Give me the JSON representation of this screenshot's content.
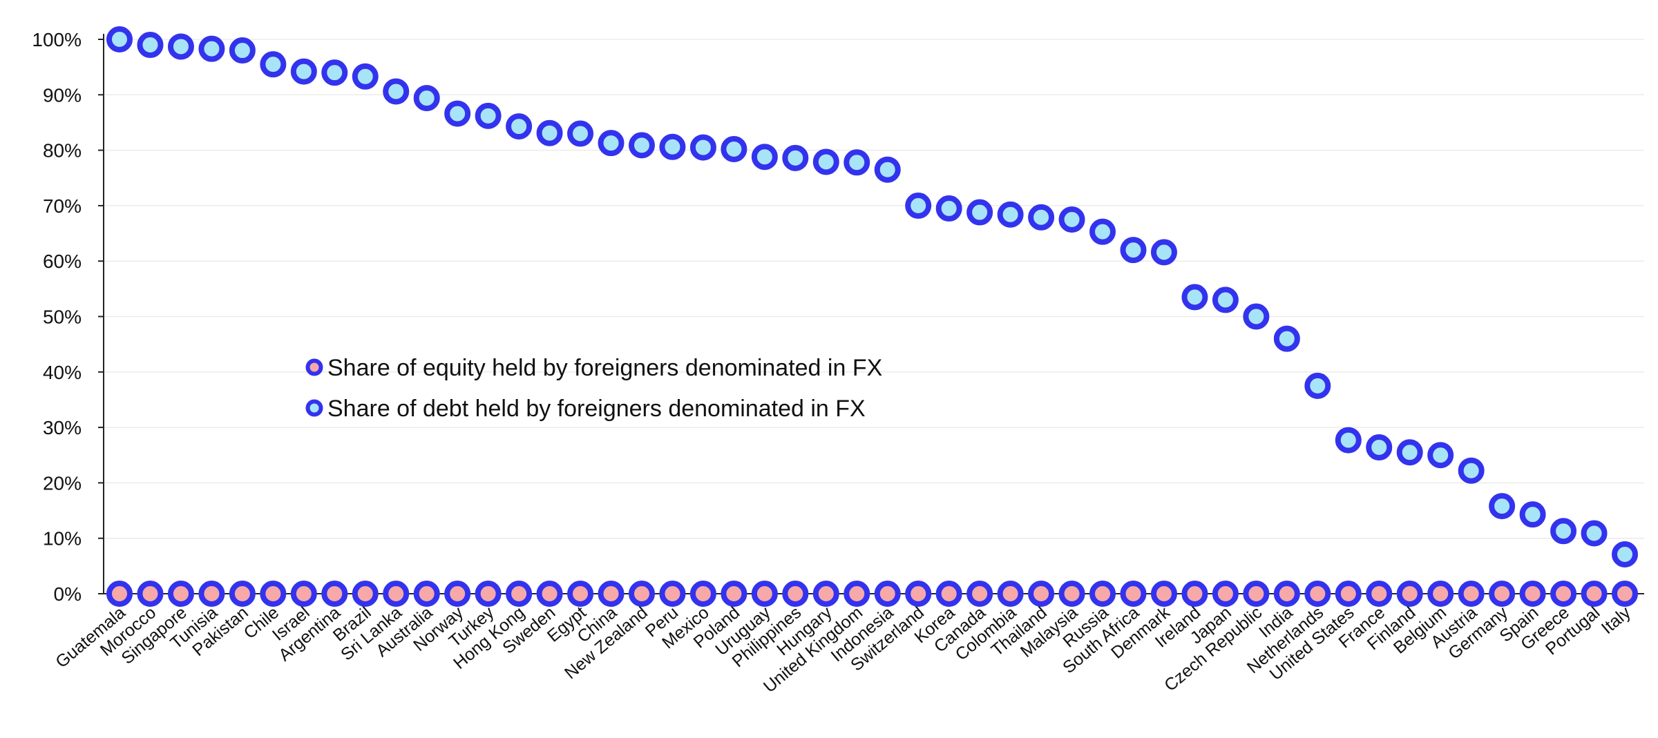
{
  "chart_data": {
    "type": "scatter",
    "title": "",
    "xlabel": "",
    "ylabel": "",
    "ylim": [
      0,
      100
    ],
    "y_ticks": [
      "0%",
      "10%",
      "20%",
      "30%",
      "40%",
      "50%",
      "60%",
      "70%",
      "80%",
      "90%",
      "100%"
    ],
    "grid": true,
    "legend_position": "center-left",
    "categories": [
      "Guatemala",
      "Morocco",
      "Singapore",
      "Tunisia",
      "Pakistan",
      "Chile",
      "Israel",
      "Argentina",
      "Brazil",
      "Sri Lanka",
      "Australia",
      "Norway",
      "Turkey",
      "Hong Kong",
      "Sweden",
      "Egypt",
      "China",
      "New Zealand",
      "Peru",
      "Mexico",
      "Poland",
      "Uruguay",
      "Philippines",
      "Hungary",
      "United Kingdom",
      "Indonesia",
      "Switzerland",
      "Korea",
      "Canada",
      "Colombia",
      "Thailand",
      "Malaysia",
      "Russia",
      "South Africa",
      "Denmark",
      "Ireland",
      "Japan",
      "Czech Republic",
      "India",
      "Netherlands",
      "United States",
      "France",
      "Finland",
      "Belgium",
      "Austria",
      "Germany",
      "Spain",
      "Greece",
      "Portugal",
      "Italy"
    ],
    "series": [
      {
        "name": "Share of equity held by foreigners denominated in FX",
        "color": "#f7a8a8",
        "edge_color": "#3333ee",
        "values": [
          0,
          0,
          0,
          0,
          0,
          0,
          0,
          0,
          0,
          0,
          0,
          0,
          0,
          0,
          0,
          0,
          0,
          0,
          0,
          0,
          0,
          0,
          0,
          0,
          0,
          0,
          0,
          0,
          0,
          0,
          0,
          0,
          0,
          0,
          0,
          0,
          0,
          0,
          0,
          0,
          0,
          0,
          0,
          0,
          0,
          0,
          0,
          0,
          0,
          0
        ]
      },
      {
        "name": "Share of debt held by foreigners denominated in FX",
        "color": "#a8e4f7",
        "edge_color": "#3333ee",
        "values": [
          100,
          99,
          98.7,
          98.3,
          98,
          95.5,
          94.2,
          94,
          93.3,
          90.6,
          89.4,
          86.6,
          86.2,
          84.3,
          83.1,
          83,
          81.3,
          80.9,
          80.6,
          80.5,
          80.2,
          78.8,
          78.6,
          77.9,
          77.8,
          76.5,
          70,
          69.5,
          68.8,
          68.4,
          67.9,
          67.5,
          65.3,
          62,
          61.6,
          53.5,
          53,
          50,
          46,
          37.5,
          27.7,
          26.4,
          25.5,
          25,
          22.2,
          15.8,
          14.3,
          11.3,
          10.9,
          7.1
        ]
      }
    ]
  }
}
